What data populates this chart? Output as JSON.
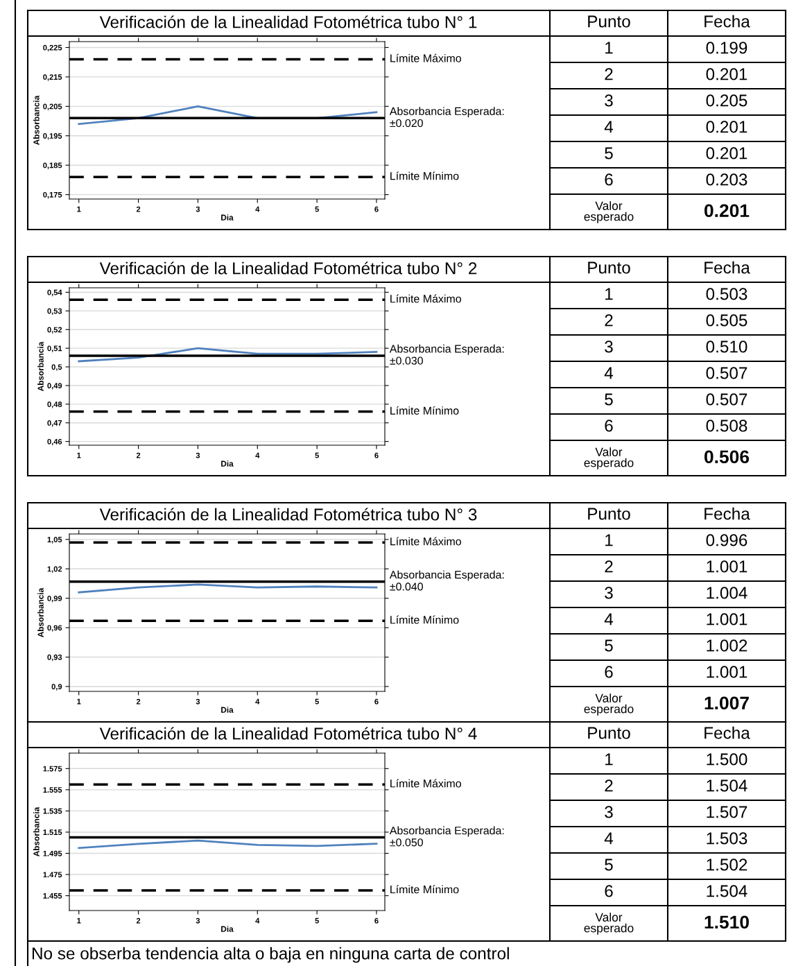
{
  "chart_data": [
    {
      "type": "line",
      "title": "Verificación de la Linealidad Fotométrica tubo N° 1",
      "xlabel": "Dia",
      "ylabel": "Absorbancia",
      "categories": [
        "1",
        "2",
        "3",
        "4",
        "5",
        "6"
      ],
      "ylim": [
        0.1735,
        0.227
      ],
      "yticks": [
        {
          "value": 0.175,
          "label": "0,175"
        },
        {
          "value": 0.185,
          "label": "0,185"
        },
        {
          "value": 0.195,
          "label": "0,195"
        },
        {
          "value": 0.205,
          "label": "0,205"
        },
        {
          "value": 0.215,
          "label": "0,215"
        },
        {
          "value": 0.225,
          "label": "0,225"
        }
      ],
      "grid": "y",
      "marker": "none",
      "line_style": "solid",
      "series": [
        {
          "color": "#4f81bd",
          "values": [
            0.199,
            0.201,
            0.205,
            0.201,
            0.201,
            0.203
          ]
        }
      ],
      "ref_lines": [
        {
          "axis": "y",
          "value": 0.221,
          "label": "Límite Máximo",
          "line_style": "dashed",
          "color": "#000000"
        },
        {
          "axis": "y",
          "value": 0.201,
          "label": "Absorbancia Esperada:\n±0.020",
          "line_style": "solid",
          "color": "#000000"
        },
        {
          "axis": "y",
          "value": 0.181,
          "label": "Límite Mínimo",
          "line_style": "dashed",
          "color": "#000000"
        }
      ],
      "annotations": [
        "Punto",
        "Fecha",
        "0.199",
        "0.201",
        "0.205",
        "0.201",
        "0.201",
        "0.203",
        "Valor\nesperado",
        "0.201"
      ]
    },
    {
      "type": "line",
      "title": "Verificación de la Linealidad Fotométrica tubo N° 2",
      "xlabel": "Dia",
      "ylabel": "Absorbancia",
      "categories": [
        "1",
        "2",
        "3",
        "4",
        "5",
        "6"
      ],
      "ylim": [
        0.458,
        0.5424
      ],
      "yticks": [
        {
          "value": 0.46,
          "label": "0,46"
        },
        {
          "value": 0.47,
          "label": "0,47"
        },
        {
          "value": 0.48,
          "label": "0,48"
        },
        {
          "value": 0.49,
          "label": "0,49"
        },
        {
          "value": 0.5,
          "label": "0,5"
        },
        {
          "value": 0.51,
          "label": "0,51"
        },
        {
          "value": 0.52,
          "label": "0,52"
        },
        {
          "value": 0.53,
          "label": "0,53"
        },
        {
          "value": 0.54,
          "label": "0,54"
        }
      ],
      "grid": "y",
      "marker": "none",
      "line_style": "solid",
      "series": [
        {
          "color": "#4f81bd",
          "values": [
            0.503,
            0.505,
            0.51,
            0.507,
            0.507,
            0.508
          ]
        }
      ],
      "ref_lines": [
        {
          "axis": "y",
          "value": 0.536,
          "label": "Límite Máximo",
          "line_style": "dashed",
          "color": "#000000"
        },
        {
          "axis": "y",
          "value": 0.506,
          "label": "Absorbancia Esperada:\n±0.030",
          "line_style": "solid",
          "color": "#000000"
        },
        {
          "axis": "y",
          "value": 0.476,
          "label": "Límite Mínimo",
          "line_style": "dashed",
          "color": "#000000"
        }
      ],
      "annotations": [
        "Punto",
        "Fecha",
        "0.503",
        "0.505",
        "0.510",
        "0.507",
        "0.507",
        "0.508",
        "Valor\nesperado",
        "0.506"
      ]
    },
    {
      "type": "line",
      "title": "Verificación de la Linealidad Fotométrica tubo N° 3",
      "xlabel": "Dia",
      "ylabel": "Absorbancia",
      "categories": [
        "1",
        "2",
        "3",
        "4",
        "5",
        "6"
      ],
      "ylim": [
        0.895,
        1.0556
      ],
      "yticks": [
        {
          "value": 0.9,
          "label": "0,9"
        },
        {
          "value": 0.93,
          "label": "0,93"
        },
        {
          "value": 0.96,
          "label": "0,96"
        },
        {
          "value": 0.99,
          "label": "0,99"
        },
        {
          "value": 1.02,
          "label": "1,02"
        },
        {
          "value": 1.05,
          "label": "1,05"
        }
      ],
      "grid": "y",
      "marker": "none",
      "line_style": "solid",
      "series": [
        {
          "color": "#4f81bd",
          "values": [
            0.996,
            1.001,
            1.004,
            1.001,
            1.002,
            1.001
          ]
        }
      ],
      "ref_lines": [
        {
          "axis": "y",
          "value": 1.047,
          "label": "Límite Máximo",
          "line_style": "dashed",
          "color": "#000000"
        },
        {
          "axis": "y",
          "value": 1.007,
          "label": "Absorbancia Esperada:\n±0.040",
          "line_style": "solid",
          "color": "#000000"
        },
        {
          "axis": "y",
          "value": 0.967,
          "label": "Límite Mínimo",
          "line_style": "dashed",
          "color": "#000000"
        }
      ],
      "annotations": [
        "Punto",
        "Fecha",
        "0.996",
        "1.001",
        "1.004",
        "1.001",
        "1.002",
        "1.001",
        "Valor\nesperado",
        "1.007"
      ]
    },
    {
      "type": "line",
      "title": "Verificación de la Linealidad Fotométrica tubo N° 4",
      "xlabel": "Dia",
      "ylabel": "Absorbancia",
      "categories": [
        "1",
        "2",
        "3",
        "4",
        "5",
        "6"
      ],
      "ylim": [
        1.441,
        1.5896
      ],
      "yticks": [
        1.455,
        1.475,
        1.495,
        1.515,
        1.535,
        1.555,
        1.575
      ],
      "grid": "y",
      "marker": "none",
      "line_style": "solid",
      "series": [
        {
          "color": "#4f81bd",
          "values": [
            1.5,
            1.504,
            1.507,
            1.503,
            1.502,
            1.504
          ]
        }
      ],
      "ref_lines": [
        {
          "axis": "y",
          "value": 1.56,
          "label": "Límite Máximo",
          "line_style": "dashed",
          "color": "#000000"
        },
        {
          "axis": "y",
          "value": 1.51,
          "label": "Absorbancia Esperada:\n±0.050",
          "line_style": "solid",
          "color": "#000000"
        },
        {
          "axis": "y",
          "value": 1.46,
          "label": "Límite Mínimo",
          "line_style": "dashed",
          "color": "#000000"
        }
      ],
      "annotations": [
        "Punto",
        "Fecha",
        "1.500",
        "1.504",
        "1.507",
        "1.503",
        "1.502",
        "1.504",
        "Valor\nesperado",
        "1.510",
        "No se obserba tendencia alta o baja en ninguna carta de control"
      ]
    }
  ]
}
